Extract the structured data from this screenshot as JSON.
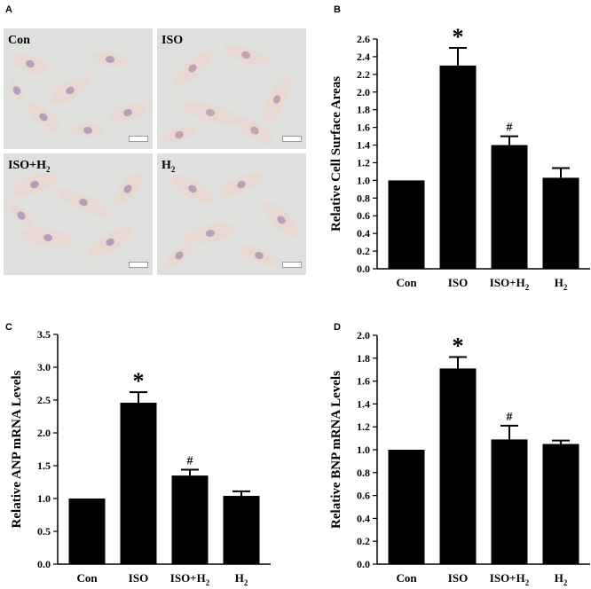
{
  "panels": {
    "A": {
      "letter": "A",
      "images": [
        {
          "label": "Con",
          "tint": "#b69fb8"
        },
        {
          "label": "ISO",
          "tint": "#c0a3b5"
        },
        {
          "label": "ISO+H",
          "sub": "2",
          "tint": "#b49dbb"
        },
        {
          "label": "H",
          "sub": "2",
          "tint": "#b9a0b8"
        }
      ]
    },
    "B": {
      "letter": "B"
    },
    "C": {
      "letter": "C"
    },
    "D": {
      "letter": "D"
    }
  },
  "chart_data": [
    {
      "panel": "B",
      "type": "bar",
      "categories": [
        "Con",
        "ISO",
        "ISO+H₂",
        "H₂"
      ],
      "values": [
        1.0,
        2.3,
        1.4,
        1.03
      ],
      "errors": [
        0.0,
        0.2,
        0.1,
        0.11
      ],
      "markers": [
        "",
        "*",
        "#",
        ""
      ],
      "ylabel": "Relative Cell Surface Areas",
      "ylim": [
        0,
        2.6
      ],
      "yticks": [
        "0.0",
        "0.2",
        "0.4",
        "0.6",
        "0.8",
        "1.0",
        "1.2",
        "1.4",
        "1.6",
        "1.8",
        "2.0",
        "2.2",
        "2.4",
        "2.6"
      ],
      "grid": false
    },
    {
      "panel": "C",
      "type": "bar",
      "categories": [
        "Con",
        "ISO",
        "ISO+H₂",
        "H₂"
      ],
      "values": [
        1.0,
        2.46,
        1.35,
        1.04
      ],
      "errors": [
        0.0,
        0.16,
        0.09,
        0.07
      ],
      "markers": [
        "",
        "*",
        "#",
        ""
      ],
      "ylabel": "Relative ANP mRNA Levels",
      "ylim": [
        0,
        3.5
      ],
      "yticks": [
        "0.0",
        "0.5",
        "1.0",
        "1.5",
        "2.0",
        "2.5",
        "3.0",
        "3.5"
      ],
      "grid": false
    },
    {
      "panel": "D",
      "type": "bar",
      "categories": [
        "Con",
        "ISO",
        "ISO+H₂",
        "H₂"
      ],
      "values": [
        1.0,
        1.71,
        1.09,
        1.05
      ],
      "errors": [
        0.0,
        0.1,
        0.12,
        0.03
      ],
      "markers": [
        "",
        "*",
        "#",
        ""
      ],
      "ylabel": "Relative BNP mRNA Levels",
      "ylim": [
        0,
        2.0
      ],
      "yticks": [
        "0.0",
        "0.2",
        "0.4",
        "0.6",
        "0.8",
        "1.0",
        "1.2",
        "1.4",
        "1.6",
        "1.8",
        "2.0"
      ],
      "grid": false
    }
  ]
}
